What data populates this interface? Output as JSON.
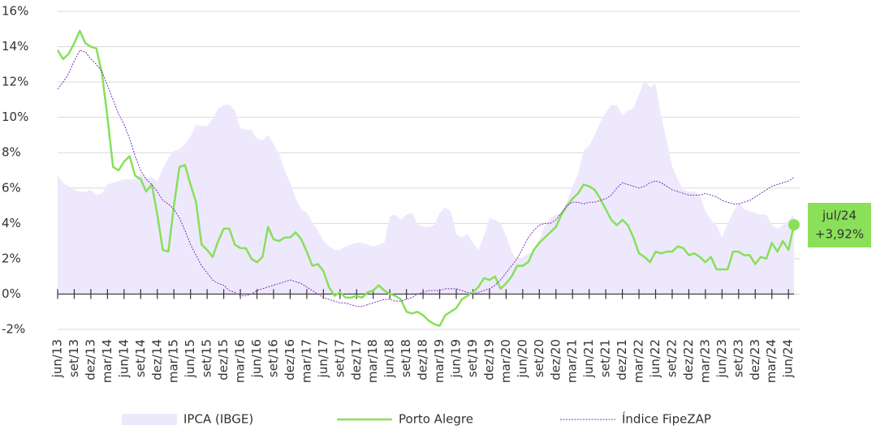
{
  "chart_data": {
    "type": "line",
    "categories": [
      "jun/13",
      null,
      null,
      "set/13",
      null,
      null,
      "dez/13",
      null,
      null,
      "mar/14",
      null,
      null,
      "jun/14",
      null,
      null,
      "set/14",
      null,
      null,
      "dez/14",
      null,
      null,
      "mar/15",
      null,
      null,
      "jun/15",
      null,
      null,
      "set/15",
      null,
      null,
      "dez/15",
      null,
      null,
      "mar/16",
      null,
      null,
      "jun/16",
      null,
      null,
      "set/16",
      null,
      null,
      "dez/16",
      null,
      null,
      "mar/17",
      null,
      null,
      "jun/17",
      null,
      null,
      "set/17",
      null,
      null,
      "dez/17",
      null,
      null,
      "mar/18",
      null,
      null,
      "jun/18",
      null,
      null,
      "set/18",
      null,
      null,
      "dez/18",
      null,
      null,
      "mar/19",
      null,
      null,
      "jun/19",
      null,
      null,
      "set/19",
      null,
      null,
      "dez/19",
      null,
      null,
      "mar/20",
      null,
      null,
      "jun/20",
      null,
      null,
      "set/20",
      null,
      null,
      "dez/20",
      null,
      null,
      "mar/21",
      null,
      null,
      "jun/21",
      null,
      null,
      "set/21",
      null,
      null,
      "dez/21",
      null,
      null,
      "mar/22",
      null,
      null,
      "jun/22",
      null,
      null,
      "set/22",
      null,
      null,
      "dez/22",
      null,
      null,
      "mar/23",
      null,
      null,
      "jun/23",
      null,
      null,
      "set/23",
      null,
      null,
      "dez/23",
      null,
      null,
      "mar/24",
      null,
      null,
      "jun/24",
      null
    ],
    "series": [
      {
        "name": "IPCA (IBGE)",
        "kind": "area",
        "color": "#eee8fc",
        "values": [
          6.7,
          6.3,
          6.1,
          5.9,
          5.8,
          5.8,
          5.9,
          5.6,
          5.7,
          6.2,
          6.3,
          6.4,
          6.5,
          6.5,
          6.5,
          6.8,
          6.6,
          6.6,
          6.4,
          7.1,
          7.7,
          8.1,
          8.2,
          8.5,
          8.9,
          9.6,
          9.5,
          9.5,
          9.9,
          10.5,
          10.7,
          10.7,
          10.4,
          9.4,
          9.3,
          9.3,
          8.8,
          8.7,
          9.0,
          8.5,
          7.9,
          7.0,
          6.3,
          5.4,
          4.8,
          4.6,
          4.1,
          3.6,
          3.0,
          2.7,
          2.5,
          2.5,
          2.7,
          2.8,
          2.9,
          2.9,
          2.8,
          2.7,
          2.8,
          2.9,
          4.4,
          4.5,
          4.2,
          4.5,
          4.6,
          4.0,
          3.8,
          3.8,
          3.9,
          4.6,
          4.9,
          4.7,
          3.4,
          3.2,
          3.4,
          2.9,
          2.5,
          3.3,
          4.3,
          4.2,
          4.0,
          3.3,
          2.4,
          1.9,
          2.1,
          2.3,
          2.4,
          3.1,
          3.9,
          4.3,
          4.5,
          4.6,
          5.2,
          6.1,
          6.8,
          8.1,
          8.4,
          9.0,
          9.7,
          10.3,
          10.7,
          10.7,
          10.1,
          10.4,
          10.5,
          11.3,
          12.1,
          11.7,
          11.9,
          10.1,
          8.7,
          7.2,
          6.5,
          5.9,
          5.8,
          5.8,
          5.6,
          4.7,
          4.2,
          3.9,
          3.2,
          4.0,
          4.6,
          5.2,
          4.8,
          4.7,
          4.6,
          4.5,
          4.5,
          3.9,
          3.7,
          3.9,
          4.2,
          4.5
        ]
      },
      {
        "name": "Porto Alegre",
        "kind": "line",
        "color": "#86e05a",
        "values": [
          13.8,
          13.3,
          13.6,
          14.2,
          14.9,
          14.2,
          14.0,
          13.9,
          12.5,
          10.0,
          7.2,
          7.0,
          7.5,
          7.8,
          6.7,
          6.5,
          5.8,
          6.2,
          4.5,
          2.5,
          2.4,
          5.0,
          7.2,
          7.3,
          6.2,
          5.2,
          2.8,
          2.5,
          2.1,
          3.0,
          3.7,
          3.7,
          2.8,
          2.6,
          2.6,
          2.0,
          1.8,
          2.1,
          3.8,
          3.1,
          3.0,
          3.2,
          3.2,
          3.5,
          3.1,
          2.4,
          1.6,
          1.7,
          1.3,
          0.4,
          -0.1,
          0.1,
          -0.2,
          -0.2,
          -0.1,
          -0.2,
          0.1,
          0.2,
          0.5,
          0.2,
          0.0,
          -0.1,
          -0.3,
          -1.0,
          -1.1,
          -1.0,
          -1.2,
          -1.5,
          -1.7,
          -1.8,
          -1.2,
          -1.0,
          -0.8,
          -0.3,
          -0.1,
          0.1,
          0.4,
          0.9,
          0.8,
          1.0,
          0.3,
          0.6,
          1.0,
          1.6,
          1.6,
          1.8,
          2.5,
          2.9,
          3.2,
          3.5,
          3.8,
          4.5,
          5.0,
          5.4,
          5.7,
          6.2,
          6.1,
          5.9,
          5.4,
          4.8,
          4.2,
          3.9,
          4.2,
          3.9,
          3.2,
          2.3,
          2.1,
          1.8,
          2.4,
          2.3,
          2.4,
          2.4,
          2.7,
          2.6,
          2.2,
          2.3,
          2.1,
          1.8,
          2.1,
          1.4,
          1.4,
          1.4,
          2.4,
          2.4,
          2.2,
          2.2,
          1.7,
          2.1,
          2.0,
          2.9,
          2.4,
          3.0,
          2.5,
          3.92
        ]
      },
      {
        "name": "Índice FipeZAP",
        "kind": "dotted",
        "color": "#7b2fbf",
        "values": [
          11.6,
          12.0,
          12.5,
          13.2,
          13.8,
          13.7,
          13.3,
          13.0,
          12.6,
          11.8,
          11.0,
          10.2,
          9.6,
          8.8,
          7.8,
          7.0,
          6.5,
          6.2,
          5.8,
          5.3,
          5.1,
          4.8,
          4.3,
          3.6,
          2.8,
          2.2,
          1.6,
          1.2,
          0.8,
          0.6,
          0.5,
          0.2,
          0.1,
          -0.1,
          -0.1,
          0.0,
          0.2,
          0.3,
          0.4,
          0.5,
          0.6,
          0.7,
          0.8,
          0.7,
          0.6,
          0.4,
          0.2,
          0.0,
          -0.2,
          -0.3,
          -0.4,
          -0.5,
          -0.5,
          -0.6,
          -0.7,
          -0.7,
          -0.6,
          -0.5,
          -0.4,
          -0.3,
          -0.3,
          -0.4,
          -0.4,
          -0.3,
          -0.2,
          0.0,
          0.1,
          0.2,
          0.2,
          0.2,
          0.3,
          0.3,
          0.3,
          0.2,
          0.1,
          0.0,
          0.1,
          0.2,
          0.3,
          0.5,
          0.8,
          1.2,
          1.6,
          2.0,
          2.6,
          3.2,
          3.6,
          3.9,
          4.0,
          4.0,
          4.2,
          4.6,
          5.0,
          5.2,
          5.2,
          5.1,
          5.2,
          5.2,
          5.3,
          5.4,
          5.6,
          6.0,
          6.3,
          6.2,
          6.1,
          6.0,
          6.1,
          6.3,
          6.4,
          6.3,
          6.1,
          5.9,
          5.8,
          5.7,
          5.6,
          5.6,
          5.6,
          5.7,
          5.6,
          5.5,
          5.3,
          5.2,
          5.1,
          5.1,
          5.2,
          5.3,
          5.5,
          5.7,
          5.9,
          6.1,
          6.2,
          6.3,
          6.4,
          6.6
        ]
      }
    ],
    "ylim": [
      -2,
      16
    ],
    "yticks": [
      {
        "value": -2,
        "label": "-2%"
      },
      {
        "value": 0,
        "label": "0%"
      },
      {
        "value": 2,
        "label": "2%"
      },
      {
        "value": 4,
        "label": "4%"
      },
      {
        "value": 6,
        "label": "6%"
      },
      {
        "value": 8,
        "label": "8%"
      },
      {
        "value": 10,
        "label": "10%"
      },
      {
        "value": 12,
        "label": "12%"
      },
      {
        "value": 14,
        "label": "14%"
      },
      {
        "value": 16,
        "label": "16%"
      }
    ],
    "grid": true,
    "legend": "bottom",
    "annotation": {
      "label": "jul/24",
      "value_label": "+3,92%",
      "color": "#8be05a"
    }
  }
}
